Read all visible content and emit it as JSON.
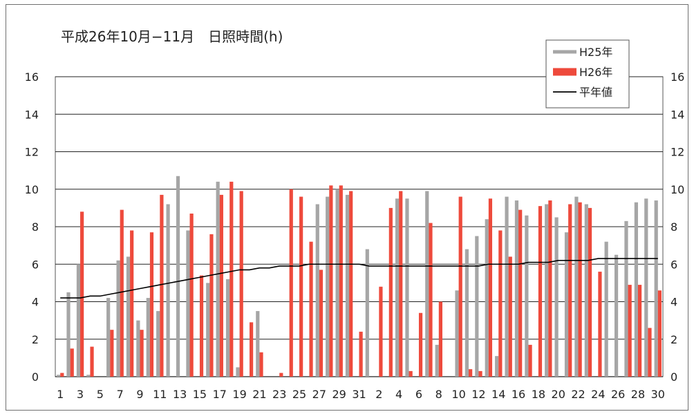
{
  "chart_data": {
    "type": "bar",
    "title": "平成26年10月−11月　日照時間(h)",
    "ylim": [
      0,
      16
    ],
    "yticks": [
      0,
      2,
      4,
      6,
      8,
      10,
      12,
      14,
      16
    ],
    "grid": true,
    "legend_position": "top-right",
    "categories": [
      "1",
      "2",
      "3",
      "4",
      "5",
      "6",
      "7",
      "8",
      "9",
      "10",
      "11",
      "12",
      "13",
      "14",
      "15",
      "16",
      "17",
      "18",
      "19",
      "20",
      "21",
      "22",
      "23",
      "24",
      "25",
      "26",
      "27",
      "28",
      "29",
      "30",
      "31",
      "1",
      "2",
      "3",
      "4",
      "5",
      "6",
      "7",
      "8",
      "9",
      "10",
      "11",
      "12",
      "13",
      "14",
      "15",
      "16",
      "17",
      "18",
      "19",
      "20",
      "21",
      "22",
      "23",
      "24",
      "25",
      "26",
      "27",
      "28",
      "29",
      "30"
    ],
    "xtick_labels": [
      "1",
      "",
      "3",
      "",
      "5",
      "",
      "7",
      "",
      "9",
      "",
      "11",
      "",
      "13",
      "",
      "15",
      "",
      "17",
      "",
      "19",
      "",
      "21",
      "",
      "23",
      "",
      "25",
      "",
      "27",
      "",
      "29",
      "",
      "31",
      "",
      "2",
      "",
      "4",
      "",
      "6",
      "",
      "8",
      "",
      "10",
      "",
      "12",
      "",
      "14",
      "",
      "16",
      "",
      "18",
      "",
      "20",
      "",
      "22",
      "",
      "24",
      "",
      "26",
      "",
      "28",
      "",
      "30"
    ],
    "series": [
      {
        "name": "H25年",
        "kind": "bar",
        "color": "#a6a6a6",
        "values": [
          0.1,
          4.5,
          6.0,
          0.1,
          0.0,
          4.2,
          6.2,
          6.4,
          3.0,
          4.2,
          3.5,
          9.2,
          10.7,
          7.8,
          0.0,
          5.0,
          10.4,
          5.2,
          0.5,
          0.0,
          3.5,
          0.0,
          0.0,
          0.0,
          0.0,
          0.0,
          9.2,
          9.6,
          10.0,
          9.7,
          0.0,
          6.8,
          0.0,
          0.0,
          9.5,
          9.5,
          0.0,
          9.9,
          1.7,
          0.0,
          4.6,
          6.8,
          7.5,
          8.4,
          1.1,
          9.6,
          9.4,
          8.6,
          0.0,
          9.2,
          8.5,
          7.7,
          9.6,
          9.2,
          0.0,
          7.2,
          6.5,
          8.3,
          9.3,
          9.5,
          9.4
        ]
      },
      {
        "name": "H26年",
        "kind": "bar",
        "color": "#ee4a3c",
        "values": [
          0.2,
          1.5,
          8.8,
          1.6,
          0.0,
          2.5,
          8.9,
          7.8,
          2.5,
          7.7,
          9.7,
          0.0,
          0.0,
          8.7,
          5.4,
          7.6,
          9.7,
          10.4,
          9.9,
          2.9,
          1.3,
          0.0,
          0.2,
          10.0,
          9.6,
          7.2,
          5.7,
          10.2,
          10.2,
          9.9,
          2.4,
          0.0,
          4.8,
          9.0,
          9.9,
          0.3,
          3.4,
          8.2,
          4.0,
          0.0,
          9.6,
          0.4,
          0.3,
          9.5,
          7.8,
          6.4,
          8.9,
          1.7,
          9.1,
          9.4,
          0.0,
          9.2,
          9.3,
          9.0,
          5.6,
          0.0,
          0.0,
          4.9,
          4.9,
          2.6,
          4.6
        ]
      },
      {
        "name": "平年値",
        "kind": "line",
        "color": "#000000",
        "values": [
          4.2,
          4.2,
          4.2,
          4.3,
          4.3,
          4.4,
          4.5,
          4.6,
          4.7,
          4.8,
          4.9,
          5.0,
          5.1,
          5.2,
          5.3,
          5.4,
          5.5,
          5.6,
          5.7,
          5.7,
          5.8,
          5.8,
          5.9,
          5.9,
          5.9,
          6.0,
          6.0,
          6.0,
          6.0,
          6.0,
          6.0,
          5.9,
          5.9,
          5.9,
          5.9,
          5.9,
          5.9,
          5.9,
          5.9,
          5.9,
          5.9,
          5.9,
          5.9,
          6.0,
          6.0,
          6.0,
          6.0,
          6.1,
          6.1,
          6.1,
          6.2,
          6.2,
          6.2,
          6.2,
          6.3,
          6.3,
          6.3,
          6.3,
          6.3,
          6.3,
          6.3
        ]
      }
    ]
  }
}
